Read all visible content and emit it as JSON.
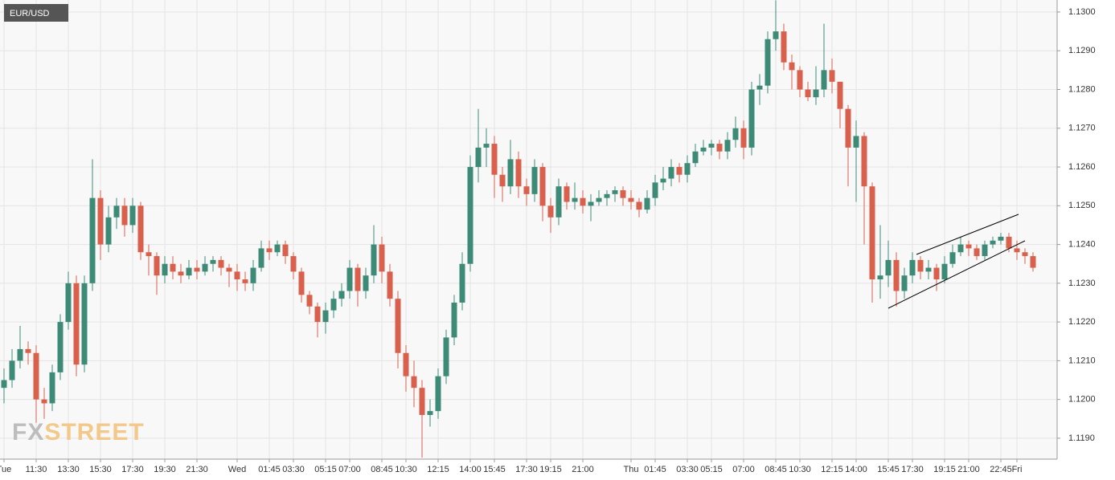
{
  "chart_data": {
    "type": "candlestick",
    "title": "EUR/USD",
    "watermark": {
      "fx": "FX",
      "street": "STREET"
    },
    "up_color": "#3d8b77",
    "down_color": "#d9604c",
    "grid": true,
    "ylim": [
      1.11846,
      1.13031
    ],
    "yticks": [
      {
        "value": 1.119,
        "label": "1.1190"
      },
      {
        "value": 1.12,
        "label": "1.1200"
      },
      {
        "value": 1.121,
        "label": "1.1210"
      },
      {
        "value": 1.122,
        "label": "1.1220"
      },
      {
        "value": 1.123,
        "label": "1.1230"
      },
      {
        "value": 1.124,
        "label": "1.1240"
      },
      {
        "value": 1.125,
        "label": "1.1250"
      },
      {
        "value": 1.126,
        "label": "1.1260"
      },
      {
        "value": 1.127,
        "label": "1.1270"
      },
      {
        "value": 1.128,
        "label": "1.1280"
      },
      {
        "value": 1.129,
        "label": "1.1290"
      },
      {
        "value": 1.13,
        "label": "1.1300"
      }
    ],
    "categories": [
      "Tue",
      null,
      null,
      null,
      "11:30",
      null,
      null,
      null,
      "13:30",
      null,
      null,
      null,
      "15:30",
      null,
      null,
      null,
      "17:30",
      null,
      null,
      null,
      "19:30",
      null,
      null,
      null,
      "21:30",
      null,
      null,
      null,
      null,
      "Wed",
      null,
      null,
      null,
      "01:45",
      null,
      null,
      "03:30",
      null,
      null,
      null,
      "05:15",
      null,
      null,
      "07:00",
      null,
      null,
      null,
      "08:45",
      null,
      null,
      "10:30",
      null,
      null,
      null,
      "12:15",
      null,
      null,
      null,
      "14:00",
      null,
      null,
      "15:45",
      null,
      null,
      null,
      "17:30",
      null,
      null,
      "19:15",
      null,
      null,
      null,
      "21:00",
      null,
      null,
      null,
      null,
      null,
      "Thu",
      null,
      null,
      "01:45",
      null,
      null,
      null,
      "03:30",
      null,
      null,
      "05:15",
      null,
      null,
      null,
      "07:00",
      null,
      null,
      null,
      "08:45",
      null,
      null,
      "10:30",
      null,
      null,
      null,
      "12:15",
      null,
      null,
      "14:00",
      null,
      null,
      null,
      "15:45",
      null,
      null,
      "17:30",
      null,
      null,
      null,
      "19:15",
      null,
      null,
      "21:00",
      null,
      null,
      null,
      "22:45",
      null,
      "Fri",
      null,
      null
    ],
    "open": [
      1.1203,
      1.1205,
      1.121,
      1.1213,
      1.1212,
      1.12,
      1.1199,
      1.1207,
      1.122,
      1.123,
      1.1209,
      1.123,
      1.1252,
      1.124,
      1.1247,
      1.125,
      1.1245,
      1.125,
      1.1238,
      1.1237,
      1.1232,
      1.1235,
      1.1233,
      1.1232,
      1.1234,
      1.1233,
      1.1235,
      1.1236,
      1.1234,
      1.1233,
      1.1231,
      1.123,
      1.1234,
      1.1239,
      1.1238,
      1.124,
      1.1237,
      1.1233,
      1.1227,
      1.1224,
      1.122,
      1.1223,
      1.1226,
      1.1228,
      1.1234,
      1.1228,
      1.1232,
      1.124,
      1.1233,
      1.1226,
      1.1212,
      1.1206,
      1.1203,
      1.1196,
      1.1197,
      1.1206,
      1.1216,
      1.1225,
      1.1235,
      1.126,
      1.1265,
      1.1266,
      1.1258,
      1.1255,
      1.1262,
      1.1255,
      1.1253,
      1.126,
      1.125,
      1.1247,
      1.1255,
      1.1251,
      1.1252,
      1.125,
      1.1251,
      1.1252,
      1.1253,
      1.1254,
      1.1252,
      1.1251,
      1.1249,
      1.1252,
      1.1256,
      1.1257,
      1.126,
      1.1258,
      1.1261,
      1.1264,
      1.1265,
      1.1266,
      1.1264,
      1.1267,
      1.127,
      1.1265,
      1.128,
      1.1281,
      1.1293,
      1.1295,
      1.1287,
      1.1285,
      1.128,
      1.1278,
      1.128,
      1.1285,
      1.1282,
      1.1275,
      1.1265,
      1.1268,
      1.1255,
      1.1231,
      1.1232,
      1.1236,
      1.1228,
      1.1232,
      1.1236,
      1.1233,
      1.1234,
      1.1231,
      1.1235,
      1.1238,
      1.124,
      1.1239,
      1.1237,
      1.124,
      1.1241,
      1.1242,
      1.1239,
      1.1238,
      1.1237
    ],
    "high": [
      1.1208,
      1.1213,
      1.1219,
      1.1215,
      1.1214,
      1.1203,
      1.1209,
      1.1222,
      1.1233,
      1.1232,
      1.1232,
      1.1262,
      1.1254,
      1.125,
      1.1252,
      1.1252,
      1.1252,
      1.1251,
      1.124,
      1.1238,
      1.1237,
      1.1237,
      1.1235,
      1.1236,
      1.1236,
      1.1237,
      1.1237,
      1.1237,
      1.1235,
      1.1235,
      1.1233,
      1.1236,
      1.1241,
      1.1241,
      1.1241,
      1.1241,
      1.1238,
      1.1234,
      1.1228,
      1.1225,
      1.1225,
      1.1228,
      1.123,
      1.1236,
      1.1235,
      1.1234,
      1.1245,
      1.1242,
      1.1235,
      1.1228,
      1.1214,
      1.121,
      1.1205,
      1.12,
      1.1208,
      1.1218,
      1.1227,
      1.1238,
      1.1263,
      1.1275,
      1.127,
      1.1268,
      1.126,
      1.1267,
      1.1264,
      1.1257,
      1.1262,
      1.1261,
      1.1252,
      1.1257,
      1.1256,
      1.1256,
      1.1254,
      1.1253,
      1.1254,
      1.1254,
      1.1255,
      1.1255,
      1.1254,
      1.1252,
      1.1254,
      1.1258,
      1.126,
      1.1262,
      1.1261,
      1.1263,
      1.1266,
      1.1267,
      1.1267,
      1.1267,
      1.1269,
      1.1273,
      1.1272,
      1.1282,
      1.1284,
      1.1295,
      1.1303,
      1.1297,
      1.1289,
      1.1286,
      1.1282,
      1.1286,
      1.1297,
      1.1288,
      1.1282,
      1.1276,
      1.1272,
      1.1269,
      1.1256,
      1.1245,
      1.1241,
      1.1238,
      1.1234,
      1.1238,
      1.1237,
      1.1236,
      1.1235,
      1.1237,
      1.124,
      1.1242,
      1.1241,
      1.124,
      1.1241,
      1.1242,
      1.1243,
      1.1243,
      1.1241,
      1.1239,
      1.1238
    ],
    "low": [
      1.1199,
      1.1203,
      1.1208,
      1.1209,
      1.1194,
      1.1195,
      1.1197,
      1.1205,
      1.1218,
      1.1206,
      1.1207,
      1.1228,
      1.1236,
      1.1238,
      1.1244,
      1.1242,
      1.1243,
      1.1236,
      1.1232,
      1.1227,
      1.123,
      1.1231,
      1.123,
      1.1231,
      1.1231,
      1.1232,
      1.1233,
      1.1232,
      1.1229,
      1.1228,
      1.1228,
      1.1228,
      1.1233,
      1.1236,
      1.1237,
      1.1235,
      1.1231,
      1.1225,
      1.1222,
      1.1216,
      1.1217,
      1.1221,
      1.1224,
      1.1226,
      1.1224,
      1.1226,
      1.123,
      1.123,
      1.1224,
      1.1208,
      1.1202,
      1.1198,
      1.1185,
      1.1193,
      1.1195,
      1.1204,
      1.1214,
      1.1223,
      1.1233,
      1.1256,
      1.126,
      1.1252,
      1.1251,
      1.1253,
      1.1252,
      1.125,
      1.1251,
      1.1246,
      1.1243,
      1.1245,
      1.1249,
      1.1249,
      1.1248,
      1.1246,
      1.125,
      1.125,
      1.1251,
      1.125,
      1.1249,
      1.1247,
      1.1248,
      1.125,
      1.1254,
      1.1255,
      1.1256,
      1.1256,
      1.126,
      1.1263,
      1.1263,
      1.1262,
      1.1262,
      1.1265,
      1.1262,
      1.1263,
      1.1276,
      1.1279,
      1.129,
      1.1285,
      1.128,
      1.1278,
      1.1277,
      1.1276,
      1.1278,
      1.1279,
      1.127,
      1.1255,
      1.1251,
      1.124,
      1.1225,
      1.1226,
      1.1229,
      1.1224,
      1.1226,
      1.123,
      1.1231,
      1.1231,
      1.1228,
      1.123,
      1.1234,
      1.1237,
      1.1237,
      1.1236,
      1.1236,
      1.1239,
      1.124,
      1.1238,
      1.1236,
      1.1235,
      1.1233
    ],
    "close": [
      1.1205,
      1.121,
      1.1213,
      1.1212,
      1.12,
      1.1199,
      1.1207,
      1.122,
      1.123,
      1.1209,
      1.123,
      1.1252,
      1.124,
      1.1247,
      1.125,
      1.1245,
      1.125,
      1.1238,
      1.1237,
      1.1232,
      1.1235,
      1.1233,
      1.1232,
      1.1234,
      1.1233,
      1.1235,
      1.1236,
      1.1234,
      1.1233,
      1.1231,
      1.123,
      1.1234,
      1.1239,
      1.1238,
      1.124,
      1.1237,
      1.1233,
      1.1227,
      1.1224,
      1.122,
      1.1223,
      1.1226,
      1.1228,
      1.1234,
      1.1228,
      1.1232,
      1.124,
      1.1233,
      1.1226,
      1.1212,
      1.1206,
      1.1203,
      1.1196,
      1.1197,
      1.1206,
      1.1216,
      1.1225,
      1.1235,
      1.126,
      1.1265,
      1.1266,
      1.1258,
      1.1255,
      1.1262,
      1.1255,
      1.1253,
      1.126,
      1.125,
      1.1247,
      1.1255,
      1.1251,
      1.1252,
      1.125,
      1.1251,
      1.1252,
      1.1253,
      1.1254,
      1.1252,
      1.1251,
      1.1249,
      1.1252,
      1.1256,
      1.1257,
      1.126,
      1.1258,
      1.1261,
      1.1264,
      1.1265,
      1.1266,
      1.1264,
      1.1267,
      1.127,
      1.1265,
      1.128,
      1.1281,
      1.1293,
      1.1295,
      1.1287,
      1.1285,
      1.128,
      1.1278,
      1.128,
      1.1285,
      1.1282,
      1.1275,
      1.1265,
      1.1268,
      1.1255,
      1.1231,
      1.1232,
      1.1236,
      1.1228,
      1.1232,
      1.1236,
      1.1233,
      1.1234,
      1.1231,
      1.1235,
      1.1238,
      1.124,
      1.1239,
      1.1237,
      1.124,
      1.1241,
      1.1242,
      1.1239,
      1.1238,
      1.1237,
      1.1234
    ]
  }
}
